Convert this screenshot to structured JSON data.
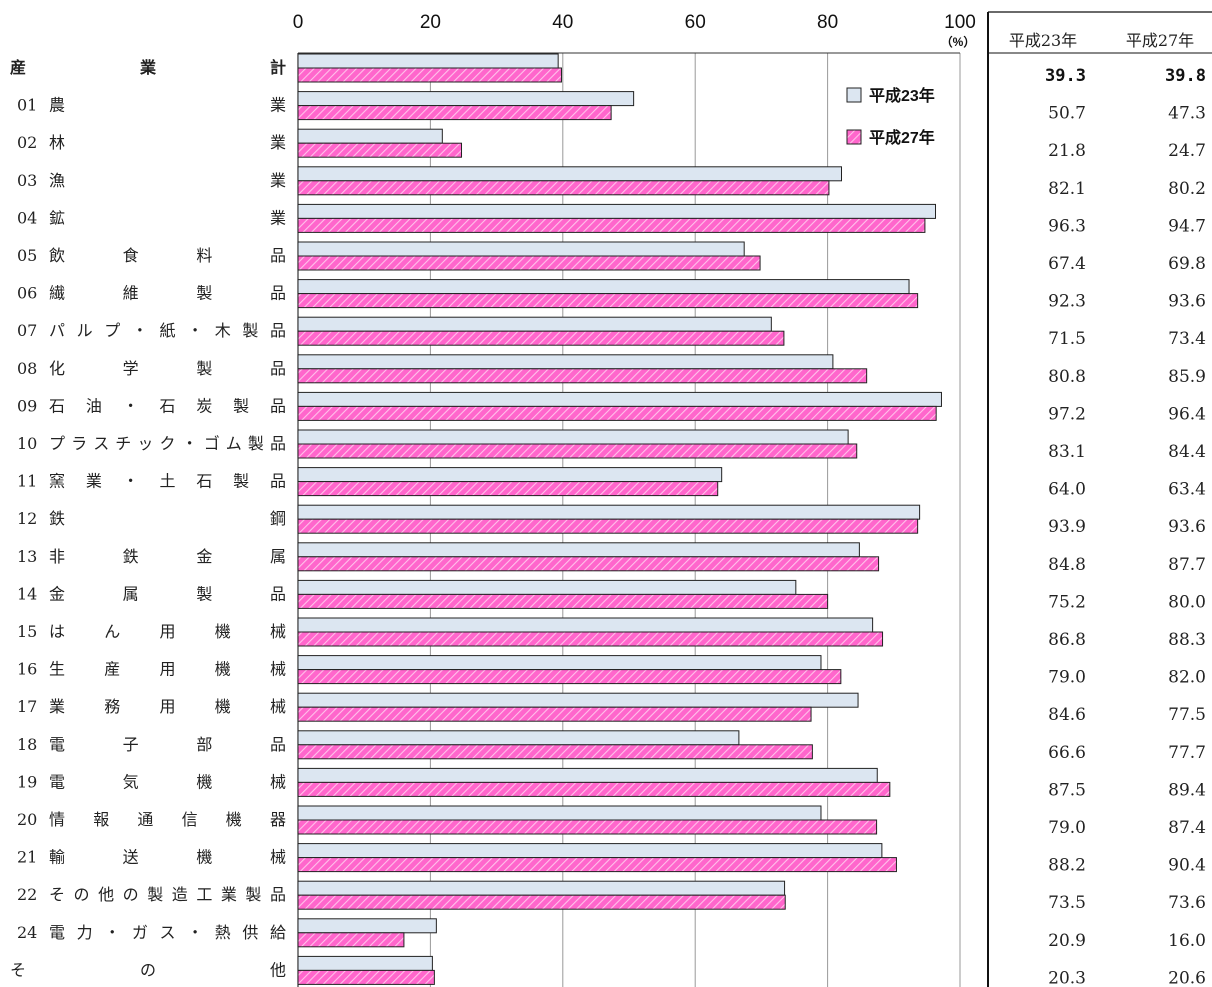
{
  "chart_data": {
    "type": "bar",
    "orientation": "horizontal",
    "xlim": [
      0,
      100
    ],
    "x_ticks": [
      "0",
      "20",
      "40",
      "60",
      "80",
      "100"
    ],
    "x_unit": "（%）",
    "grid": true,
    "legend_position": "top-right",
    "series": [
      {
        "name": "平成23年",
        "color": "#dce6f1"
      },
      {
        "name": "平成27年",
        "color": "#ff66cc"
      }
    ],
    "categories": [
      {
        "code": "",
        "label": "産業計",
        "bold": true
      },
      {
        "code": "01",
        "label": "農業"
      },
      {
        "code": "02",
        "label": "林業"
      },
      {
        "code": "03",
        "label": "漁業"
      },
      {
        "code": "04",
        "label": "鉱業"
      },
      {
        "code": "05",
        "label": "飲食料品"
      },
      {
        "code": "06",
        "label": "繊維製品"
      },
      {
        "code": "07",
        "label": "パルプ・紙・木製品"
      },
      {
        "code": "08",
        "label": "化学製品"
      },
      {
        "code": "09",
        "label": "石油・石炭製品"
      },
      {
        "code": "10",
        "label": "プラスチック・ゴム製品"
      },
      {
        "code": "11",
        "label": "窯業・土石製品"
      },
      {
        "code": "12",
        "label": "鉄鋼"
      },
      {
        "code": "13",
        "label": "非鉄金属"
      },
      {
        "code": "14",
        "label": "金属製品"
      },
      {
        "code": "15",
        "label": "はん用機械"
      },
      {
        "code": "16",
        "label": "生産用機械"
      },
      {
        "code": "17",
        "label": "業務用機械"
      },
      {
        "code": "18",
        "label": "電子部品"
      },
      {
        "code": "19",
        "label": "電気機械"
      },
      {
        "code": "20",
        "label": "情報通信機器"
      },
      {
        "code": "21",
        "label": "輸送機械"
      },
      {
        "code": "22",
        "label": "その他の製造工業製品"
      },
      {
        "code": "24",
        "label": "電力・ガス・熱供給"
      },
      {
        "code": "",
        "label": "その他"
      }
    ],
    "values_h23": [
      39.3,
      50.7,
      21.8,
      82.1,
      96.3,
      67.4,
      92.3,
      71.5,
      80.8,
      97.2,
      83.1,
      64.0,
      93.9,
      84.8,
      75.2,
      86.8,
      79.0,
      84.6,
      66.6,
      87.5,
      79.0,
      88.2,
      73.5,
      20.9,
      20.3
    ],
    "values_h27": [
      39.8,
      47.3,
      24.7,
      80.2,
      94.7,
      69.8,
      93.6,
      73.4,
      85.9,
      96.4,
      84.4,
      63.4,
      93.6,
      87.7,
      80.0,
      88.3,
      82.0,
      77.5,
      77.7,
      89.4,
      87.4,
      90.4,
      73.6,
      16.0,
      20.6
    ],
    "table": {
      "headers": [
        "平成23年",
        "平成27年"
      ],
      "rows": [
        [
          "39.3",
          "39.8"
        ],
        [
          "50.7",
          "47.3"
        ],
        [
          "21.8",
          "24.7"
        ],
        [
          "82.1",
          "80.2"
        ],
        [
          "96.3",
          "94.7"
        ],
        [
          "67.4",
          "69.8"
        ],
        [
          "92.3",
          "93.6"
        ],
        [
          "71.5",
          "73.4"
        ],
        [
          "80.8",
          "85.9"
        ],
        [
          "97.2",
          "96.4"
        ],
        [
          "83.1",
          "84.4"
        ],
        [
          "64.0",
          "63.4"
        ],
        [
          "93.9",
          "93.6"
        ],
        [
          "84.8",
          "87.7"
        ],
        [
          "75.2",
          "80.0"
        ],
        [
          "86.8",
          "88.3"
        ],
        [
          "79.0",
          "82.0"
        ],
        [
          "84.6",
          "77.5"
        ],
        [
          "66.6",
          "77.7"
        ],
        [
          "87.5",
          "89.4"
        ],
        [
          "79.0",
          "87.4"
        ],
        [
          "88.2",
          "90.4"
        ],
        [
          "73.5",
          "73.6"
        ],
        [
          "20.9",
          "16.0"
        ],
        [
          "20.3",
          "20.6"
        ]
      ]
    }
  }
}
